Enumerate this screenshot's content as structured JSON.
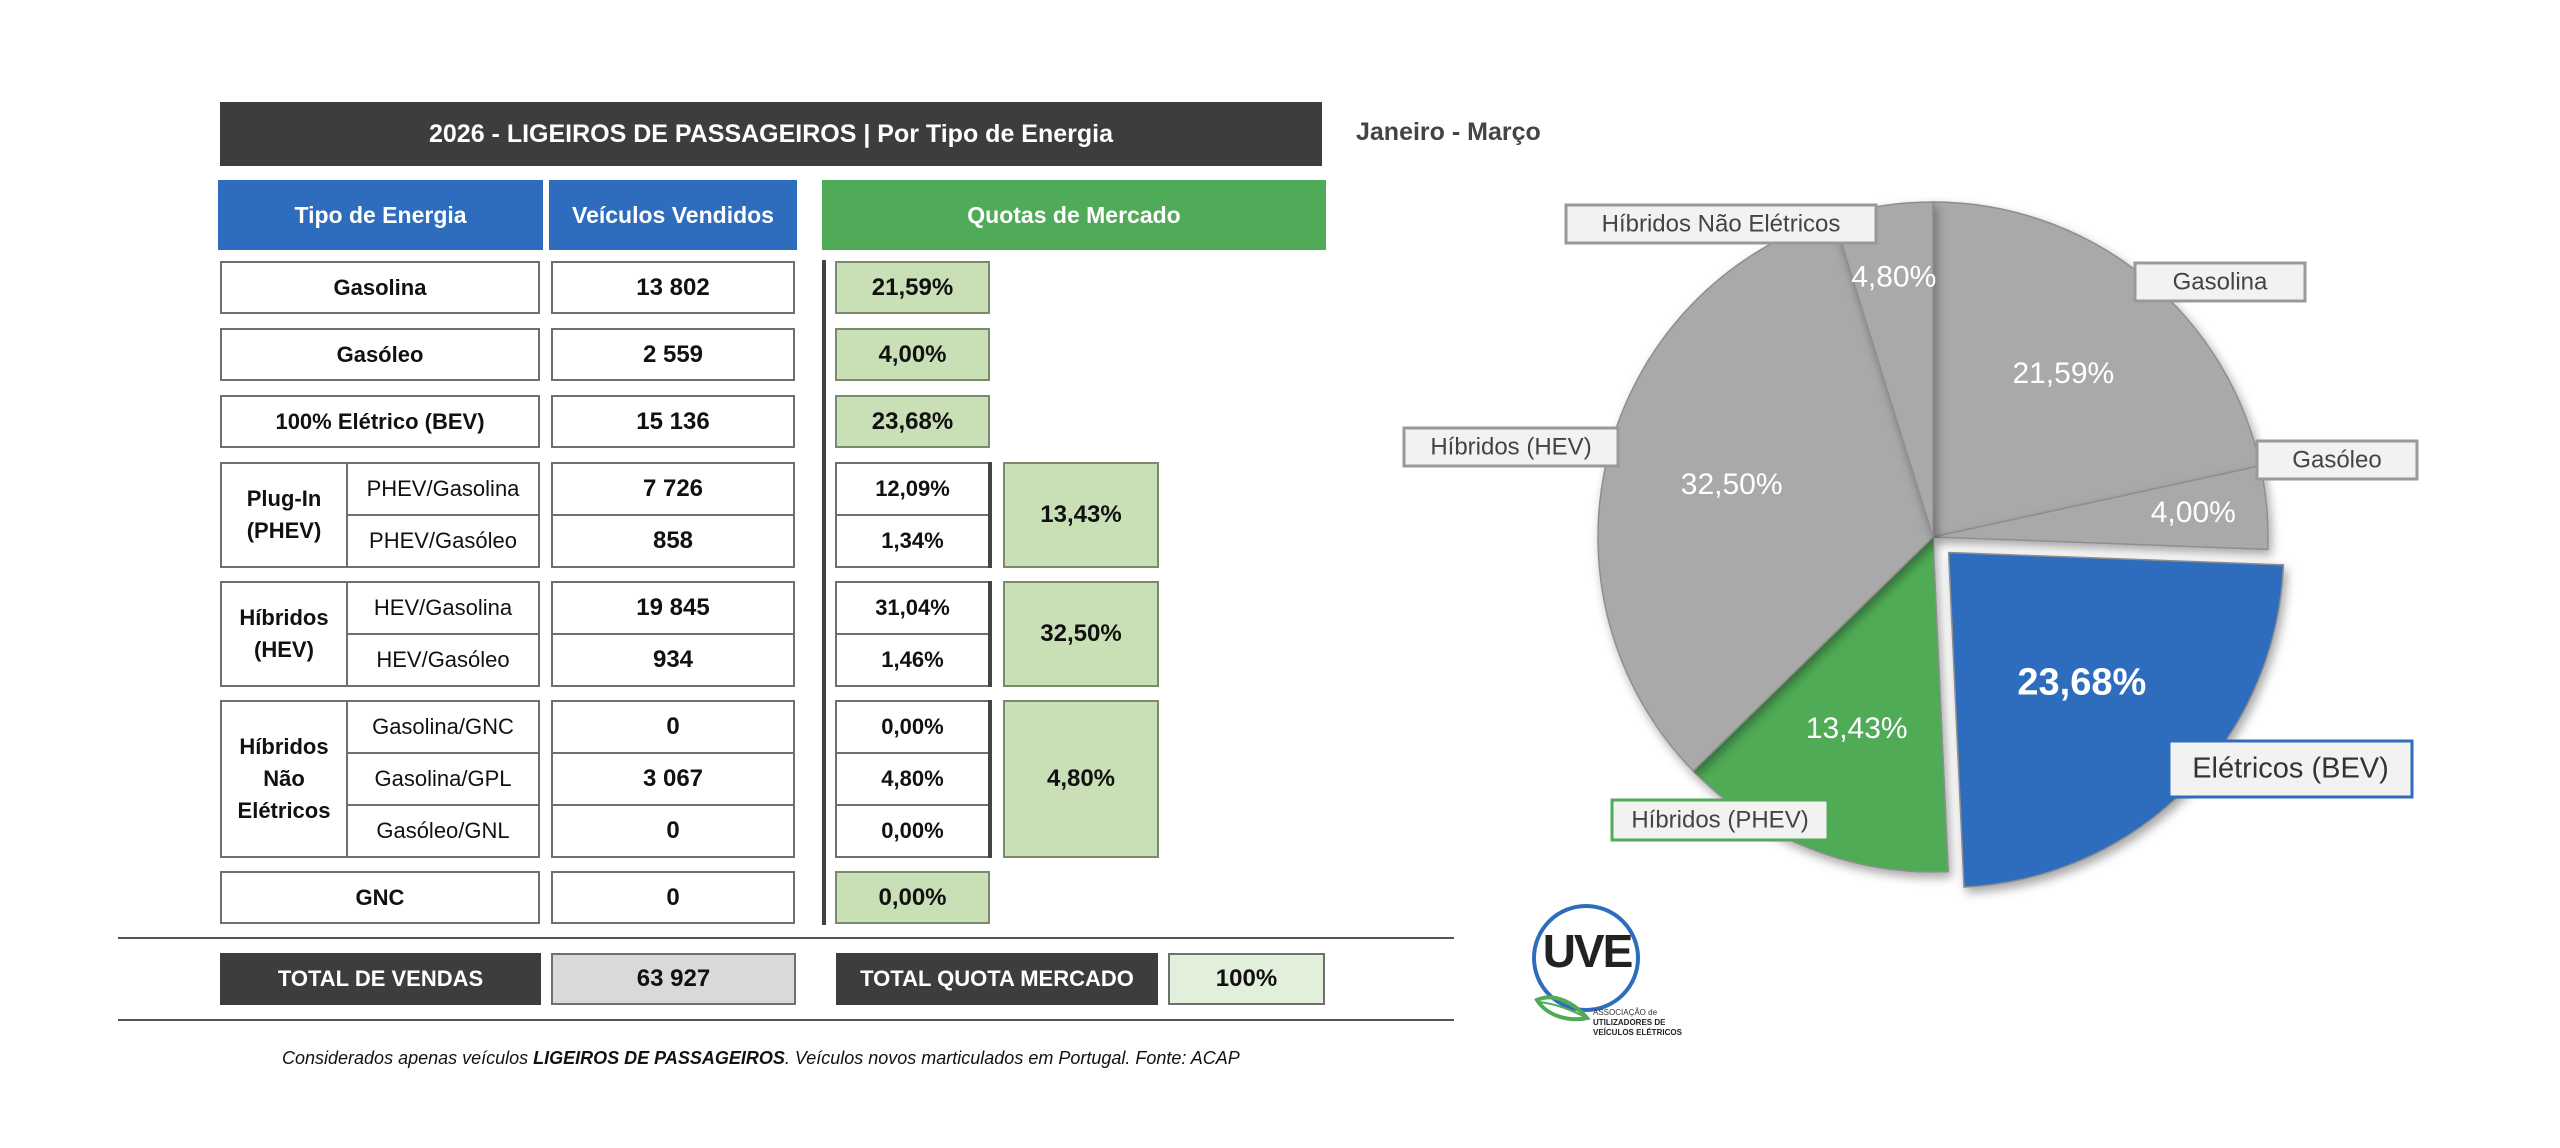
{
  "header": {
    "title": "2026 - LIGEIROS DE PASSAGEIROS | Por Tipo de Energia",
    "period": "Janeiro - Março"
  },
  "columns": {
    "tipo": "Tipo de Energia",
    "vendidos": "Veículos Vendidos",
    "quotas": "Quotas de Mercado"
  },
  "rows": {
    "gasolina": {
      "label": "Gasolina",
      "sold": "13 802",
      "share": "21,59%"
    },
    "gasoleo": {
      "label": "Gasóleo",
      "sold": "2 559",
      "share": "4,00%"
    },
    "bev": {
      "label": "100% Elétrico (BEV)",
      "sold": "15 136",
      "share": "23,68%"
    },
    "phev": {
      "group": "Plug-In (PHEV)",
      "sub": [
        {
          "label": "PHEV/Gasolina",
          "sold": "7 726",
          "share": "12,09%"
        },
        {
          "label": "PHEV/Gasóleo",
          "sold": "858",
          "share": "1,34%"
        }
      ],
      "total": "13,43%"
    },
    "hev": {
      "group": "Híbridos (HEV)",
      "sub": [
        {
          "label": "HEV/Gasolina",
          "sold": "19 845",
          "share": "31,04%"
        },
        {
          "label": "HEV/Gasóleo",
          "sold": "934",
          "share": "1,46%"
        }
      ],
      "total": "32,50%"
    },
    "nao_eletricos": {
      "group": "Híbridos Não Elétricos",
      "sub": [
        {
          "label": "Gasolina/GNC",
          "sold": "0",
          "share": "0,00%"
        },
        {
          "label": "Gasolina/GPL",
          "sold": "3 067",
          "share": "4,80%"
        },
        {
          "label": "Gasóleo/GNL",
          "sold": "0",
          "share": "0,00%"
        }
      ],
      "total": "4,80%"
    },
    "gnc": {
      "label": "GNC",
      "sold": "0",
      "share": "0,00%"
    }
  },
  "totals": {
    "vendas_label": "TOTAL DE VENDAS",
    "vendas_value": "63 927",
    "quota_label": "TOTAL QUOTA MERCADO",
    "quota_value": "100%"
  },
  "footnote": {
    "pre": "Considerados apenas veículos ",
    "bold": "LIGEIROS DE PASSAGEIROS",
    "post": ". Veículos novos marticulados em Portugal. Fonte: ACAP"
  },
  "logo": {
    "mark": "UVE",
    "line1": "ASSOCIAÇÃO de",
    "line2": "UTILIZADORES DE",
    "line3": "VEÍCULOS ELÉTRICOS"
  },
  "colors": {
    "dark": "#3d3d3d",
    "blue": "#2e6dbd",
    "green": "#4fab57",
    "light_green": "#c9e0b7",
    "grey": "#a9a9a9",
    "total_grey": "#d9d9d9",
    "total_green": "#e2efda"
  },
  "chart_data": {
    "type": "pie",
    "title": "",
    "start_angle_deg": 0,
    "direction": "clockwise",
    "slices": [
      {
        "name": "Gasolina",
        "value": 21.59,
        "label": "21,59%",
        "color": "#a9a9a9",
        "exploded": false
      },
      {
        "name": "Gasóleo",
        "value": 4.0,
        "label": "4,00%",
        "color": "#a9a9a9",
        "exploded": false
      },
      {
        "name": "Elétricos (BEV)",
        "value": 23.68,
        "label": "23,68%",
        "color": "#2e6dbd",
        "exploded": true
      },
      {
        "name": "Híbridos (PHEV)",
        "value": 13.43,
        "label": "13,43%",
        "color": "#4fab57",
        "exploded": false
      },
      {
        "name": "Híbridos (HEV)",
        "value": 32.5,
        "label": "32,50%",
        "color": "#a9a9a9",
        "exploded": false
      },
      {
        "name": "Híbridos Não Elétricos",
        "value": 4.8,
        "label": "4,80%",
        "color": "#a9a9a9",
        "exploded": false
      }
    ]
  }
}
